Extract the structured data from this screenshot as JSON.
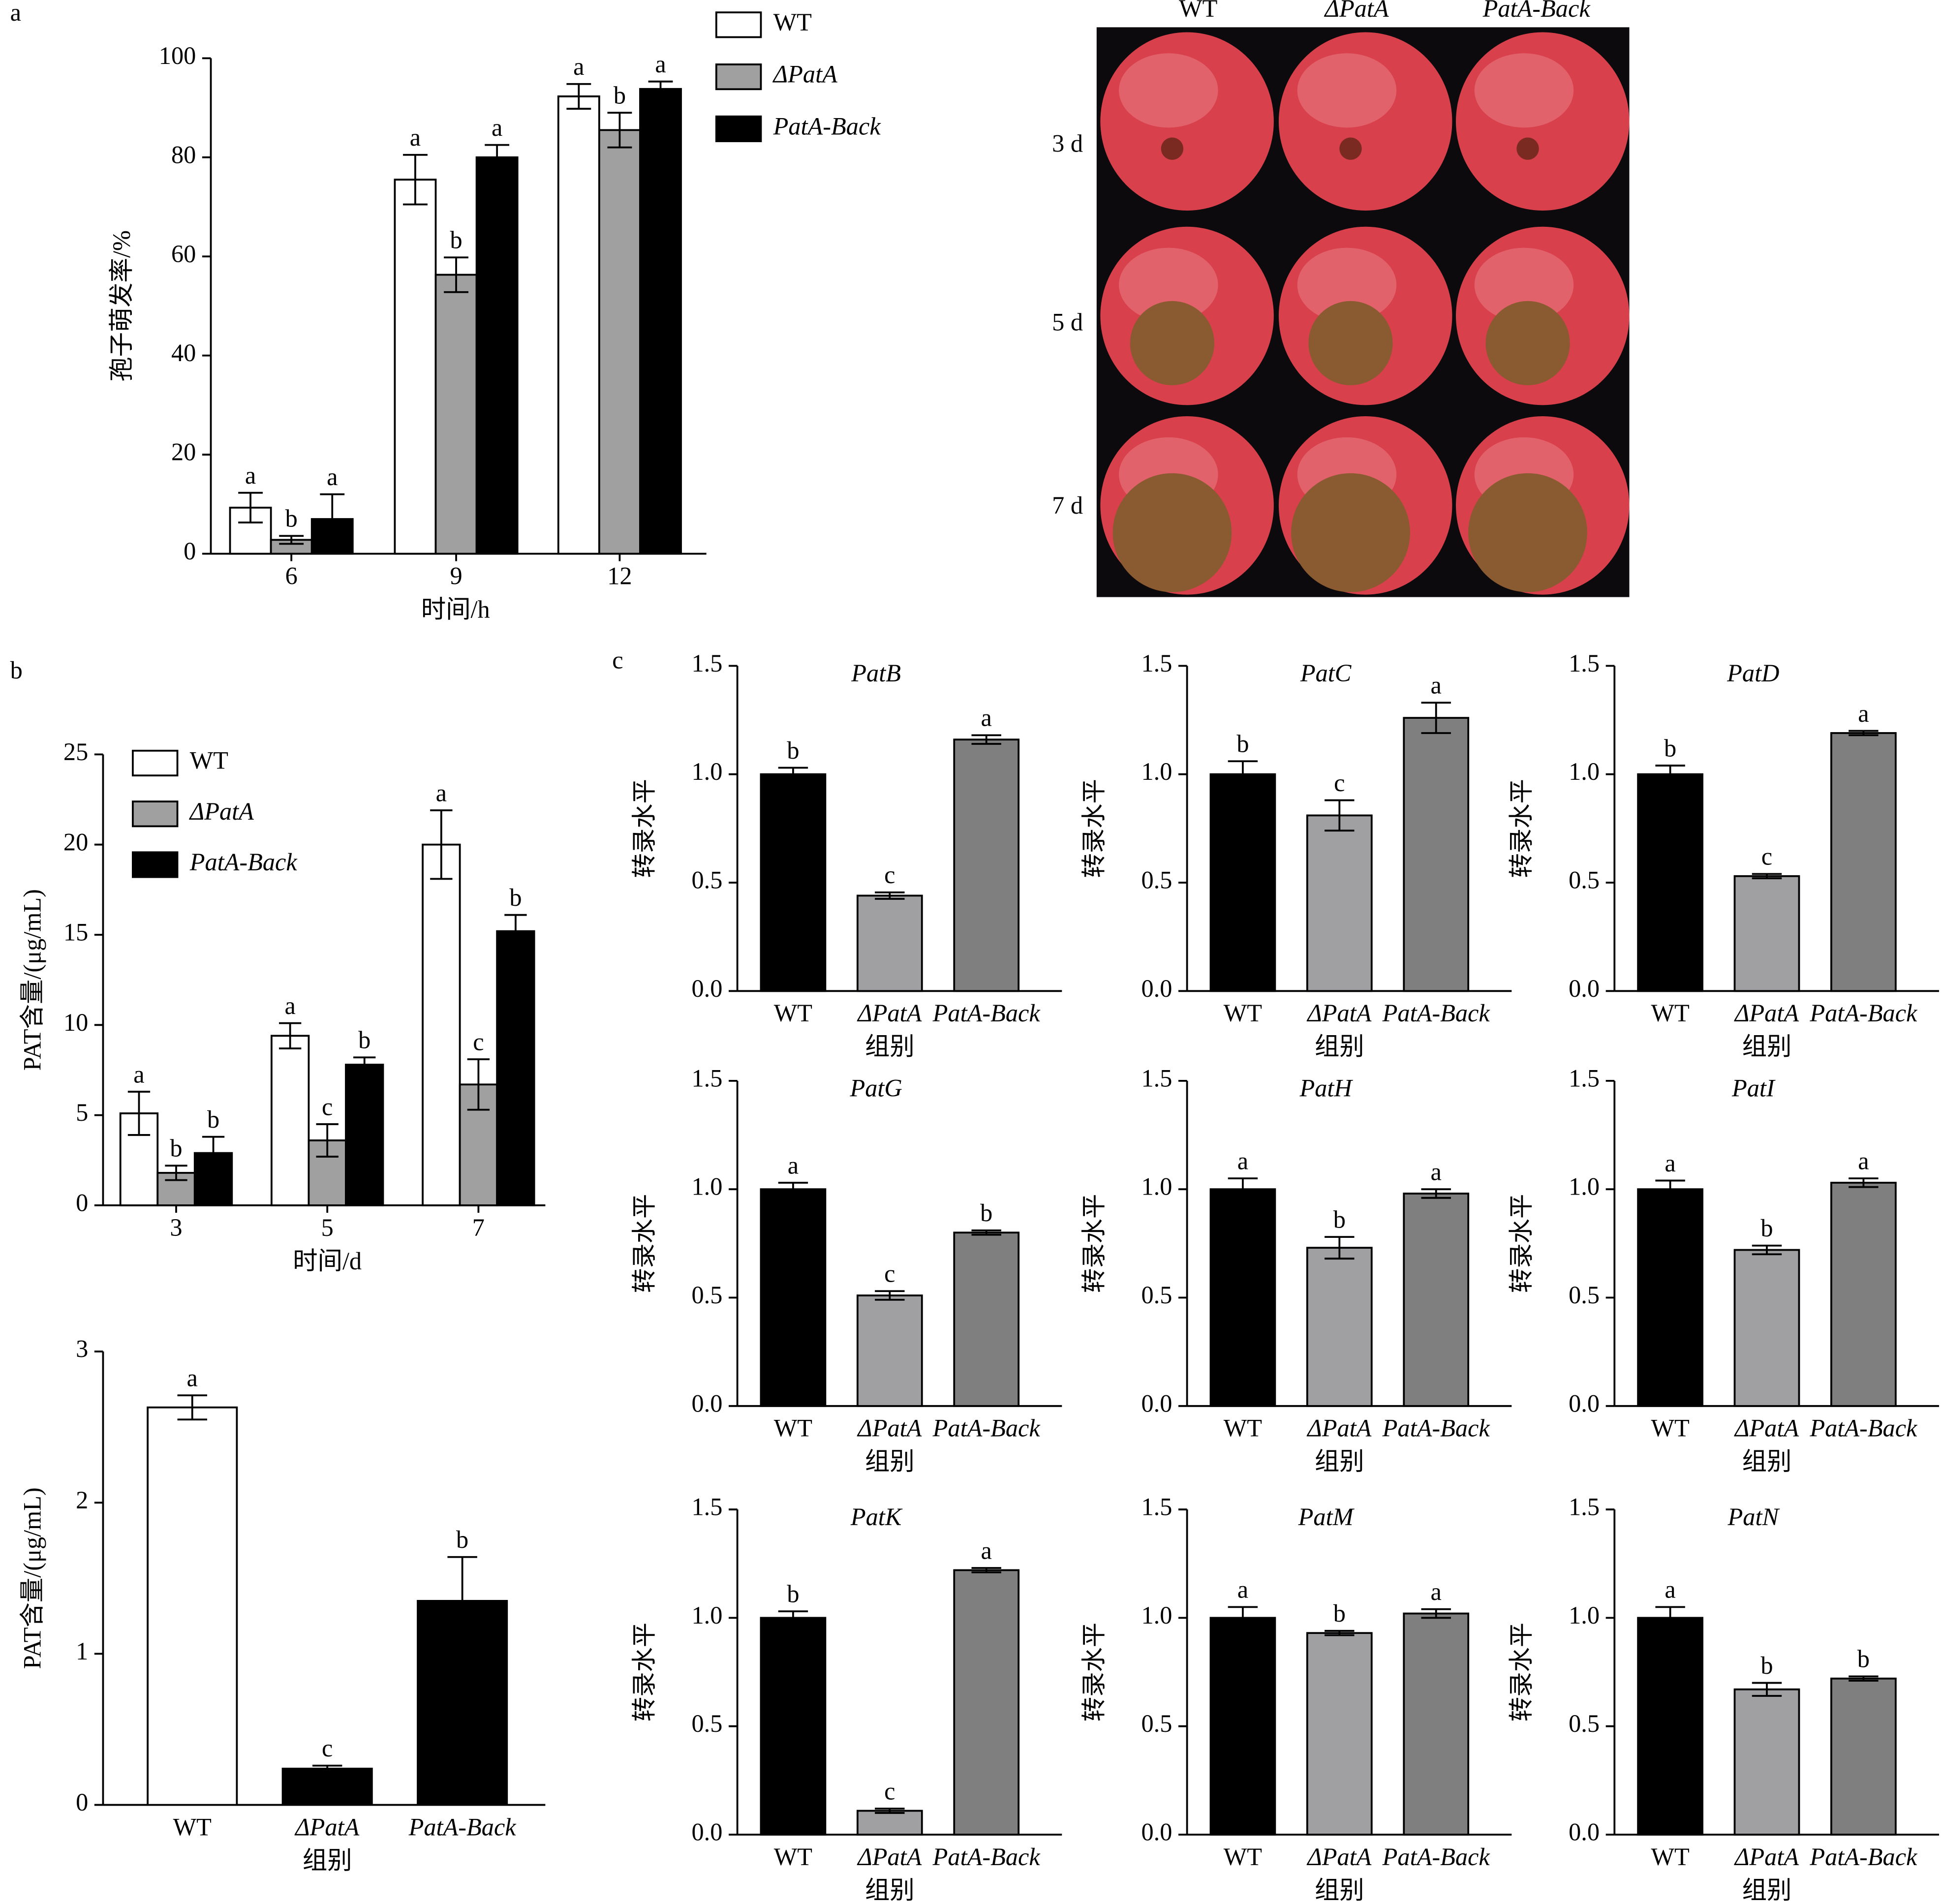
{
  "panel_labels": [
    "a",
    "b",
    "c"
  ],
  "photo": {
    "columns": [
      "WT",
      "ΔPatA",
      "PatA-Back"
    ],
    "rows": [
      "3 d",
      "5 d",
      "7 d"
    ]
  },
  "chart_data": [
    {
      "type": "grouped_bar",
      "ylabel": "孢子萌发率/%",
      "xlabel": "时间/h",
      "categories": [
        "6",
        "9",
        "12"
      ],
      "ylim": [
        0,
        100
      ],
      "yticks": [
        0,
        20,
        40,
        60,
        80,
        100
      ],
      "series": [
        {
          "name": "WT",
          "color": "#ffffff",
          "values": [
            9.3,
            75.5,
            92.3
          ],
          "errors": [
            3,
            5,
            2.5
          ],
          "letters": [
            "a",
            "a",
            "a"
          ]
        },
        {
          "name": "ΔPatA",
          "color": "#a0a0a0",
          "values": [
            2.8,
            56.3,
            85.5
          ],
          "errors": [
            0.8,
            3.5,
            3.5
          ],
          "letters": [
            "b",
            "b",
            "b"
          ]
        },
        {
          "name": "PatA-Back",
          "color": "#000000",
          "values": [
            7.0,
            80.0,
            93.8
          ],
          "errors": [
            5,
            2.5,
            1.5
          ],
          "letters": [
            "a",
            "a",
            "a"
          ]
        }
      ]
    },
    {
      "type": "grouped_bar",
      "ylabel": "PAT含量/(μg/mL)",
      "xlabel": "时间/d",
      "categories": [
        "3",
        "5",
        "7"
      ],
      "ylim": [
        0,
        25
      ],
      "yticks": [
        0,
        5,
        10,
        15,
        20,
        25
      ],
      "series": [
        {
          "name": "WT",
          "color": "#ffffff",
          "values": [
            5.1,
            9.4,
            20.0
          ],
          "errors": [
            1.2,
            0.7,
            1.9
          ],
          "letters": [
            "a",
            "a",
            "a"
          ]
        },
        {
          "name": "ΔPatA",
          "color": "#a0a0a0",
          "values": [
            1.8,
            3.6,
            6.7
          ],
          "errors": [
            0.4,
            0.9,
            1.4
          ],
          "letters": [
            "b",
            "c",
            "c"
          ]
        },
        {
          "name": "PatA-Back",
          "color": "#000000",
          "values": [
            2.9,
            7.8,
            15.2
          ],
          "errors": [
            0.9,
            0.4,
            0.9
          ],
          "letters": [
            "b",
            "b",
            "b"
          ]
        }
      ]
    },
    {
      "type": "bar",
      "ylabel": "PAT含量/(μg/mL)",
      "xlabel": "组别",
      "categories": [
        "WT",
        "ΔPatA",
        "PatA-Back"
      ],
      "ylim": [
        0,
        3
      ],
      "yticks": [
        0,
        1,
        2,
        3
      ],
      "values": [
        2.63,
        0.24,
        1.35
      ],
      "errors": [
        0.08,
        0.02,
        0.29
      ],
      "letters": [
        "a",
        "c",
        "b"
      ],
      "colors": [
        "#ffffff",
        "#000000",
        "#000000"
      ]
    },
    {
      "type": "bar",
      "title": "PatB",
      "ylabel": "转录水平",
      "xlabel": "组别",
      "categories": [
        "WT",
        "ΔPatA",
        "PatA-Back"
      ],
      "ylim": [
        0,
        1.5
      ],
      "yticks": [
        {
          "value": 0,
          "label": "0.0"
        },
        {
          "value": 0.5,
          "label": "0.5"
        },
        {
          "value": 1,
          "label": "1.0"
        },
        {
          "value": 1.5,
          "label": "1.5"
        }
      ],
      "values": [
        1.0,
        0.44,
        1.16
      ],
      "errors": [
        0.03,
        0.015,
        0.02
      ],
      "letters": [
        "b",
        "c",
        "a"
      ],
      "colors": [
        "#000000",
        "#a0a0a2",
        "#7f7f7f"
      ]
    },
    {
      "type": "bar",
      "title": "PatC",
      "ylabel": "转录水平",
      "xlabel": "组别",
      "categories": [
        "WT",
        "ΔPatA",
        "PatA-Back"
      ],
      "ylim": [
        0,
        1.5
      ],
      "yticks": [
        {
          "value": 0,
          "label": "0.0"
        },
        {
          "value": 0.5,
          "label": "0.5"
        },
        {
          "value": 1,
          "label": "1.0"
        },
        {
          "value": 1.5,
          "label": "1.5"
        }
      ],
      "values": [
        1.0,
        0.81,
        1.26
      ],
      "errors": [
        0.06,
        0.07,
        0.07
      ],
      "letters": [
        "b",
        "c",
        "a"
      ],
      "colors": [
        "#000000",
        "#a0a0a2",
        "#7f7f7f"
      ]
    },
    {
      "type": "bar",
      "title": "PatD",
      "ylabel": "转录水平",
      "xlabel": "组别",
      "categories": [
        "WT",
        "ΔPatA",
        "PatA-Back"
      ],
      "ylim": [
        0,
        1.5
      ],
      "yticks": [
        {
          "value": 0,
          "label": "0.0"
        },
        {
          "value": 0.5,
          "label": "0.5"
        },
        {
          "value": 1,
          "label": "1.0"
        },
        {
          "value": 1.5,
          "label": "1.5"
        }
      ],
      "values": [
        1.0,
        0.53,
        1.19
      ],
      "errors": [
        0.04,
        0.01,
        0.01
      ],
      "letters": [
        "b",
        "c",
        "a"
      ],
      "colors": [
        "#000000",
        "#a0a0a2",
        "#7f7f7f"
      ]
    },
    {
      "type": "bar",
      "title": "PatG",
      "ylabel": "转录水平",
      "xlabel": "组别",
      "categories": [
        "WT",
        "ΔPatA",
        "PatA-Back"
      ],
      "ylim": [
        0,
        1.5
      ],
      "yticks": [
        {
          "value": 0,
          "label": "0.0"
        },
        {
          "value": 0.5,
          "label": "0.5"
        },
        {
          "value": 1,
          "label": "1.0"
        },
        {
          "value": 1.5,
          "label": "1.5"
        }
      ],
      "values": [
        1.0,
        0.51,
        0.8
      ],
      "errors": [
        0.03,
        0.02,
        0.01
      ],
      "letters": [
        "a",
        "c",
        "b"
      ],
      "colors": [
        "#000000",
        "#a0a0a2",
        "#7f7f7f"
      ]
    },
    {
      "type": "bar",
      "title": "PatH",
      "ylabel": "转录水平",
      "xlabel": "组别",
      "categories": [
        "WT",
        "ΔPatA",
        "PatA-Back"
      ],
      "ylim": [
        0,
        1.5
      ],
      "yticks": [
        {
          "value": 0,
          "label": "0.0"
        },
        {
          "value": 0.5,
          "label": "0.5"
        },
        {
          "value": 1,
          "label": "1.0"
        },
        {
          "value": 1.5,
          "label": "1.5"
        }
      ],
      "values": [
        1.0,
        0.73,
        0.98
      ],
      "errors": [
        0.05,
        0.05,
        0.02
      ],
      "letters": [
        "a",
        "b",
        "a"
      ],
      "colors": [
        "#000000",
        "#a0a0a2",
        "#7f7f7f"
      ]
    },
    {
      "type": "bar",
      "title": "PatI",
      "ylabel": "转录水平",
      "xlabel": "组别",
      "categories": [
        "WT",
        "ΔPatA",
        "PatA-Back"
      ],
      "ylim": [
        0,
        1.5
      ],
      "yticks": [
        {
          "value": 0,
          "label": "0.0"
        },
        {
          "value": 0.5,
          "label": "0.5"
        },
        {
          "value": 1,
          "label": "1.0"
        },
        {
          "value": 1.5,
          "label": "1.5"
        }
      ],
      "values": [
        1.0,
        0.72,
        1.03
      ],
      "errors": [
        0.04,
        0.02,
        0.02
      ],
      "letters": [
        "a",
        "b",
        "a"
      ],
      "colors": [
        "#000000",
        "#a0a0a2",
        "#7f7f7f"
      ]
    },
    {
      "type": "bar",
      "title": "PatK",
      "ylabel": "转录水平",
      "xlabel": "组别",
      "categories": [
        "WT",
        "ΔPatA",
        "PatA-Back"
      ],
      "ylim": [
        0,
        1.5
      ],
      "yticks": [
        {
          "value": 0,
          "label": "0.0"
        },
        {
          "value": 0.5,
          "label": "0.5"
        },
        {
          "value": 1,
          "label": "1.0"
        },
        {
          "value": 1.5,
          "label": "1.5"
        }
      ],
      "values": [
        1.0,
        0.11,
        1.22
      ],
      "errors": [
        0.03,
        0.01,
        0.01
      ],
      "letters": [
        "b",
        "c",
        "a"
      ],
      "colors": [
        "#000000",
        "#a0a0a2",
        "#7f7f7f"
      ]
    },
    {
      "type": "bar",
      "title": "PatM",
      "ylabel": "转录水平",
      "xlabel": "组别",
      "categories": [
        "WT",
        "ΔPatA",
        "PatA-Back"
      ],
      "ylim": [
        0,
        1.5
      ],
      "yticks": [
        {
          "value": 0,
          "label": "0.0"
        },
        {
          "value": 0.5,
          "label": "0.5"
        },
        {
          "value": 1,
          "label": "1.0"
        },
        {
          "value": 1.5,
          "label": "1.5"
        }
      ],
      "values": [
        1.0,
        0.93,
        1.02
      ],
      "errors": [
        0.05,
        0.01,
        0.02
      ],
      "letters": [
        "a",
        "b",
        "a"
      ],
      "colors": [
        "#000000",
        "#a0a0a2",
        "#7f7f7f"
      ]
    },
    {
      "type": "bar",
      "title": "PatN",
      "ylabel": "转录水平",
      "xlabel": "组别",
      "categories": [
        "WT",
        "ΔPatA",
        "PatA-Back"
      ],
      "ylim": [
        0,
        1.5
      ],
      "yticks": [
        {
          "value": 0,
          "label": "0.0"
        },
        {
          "value": 0.5,
          "label": "0.5"
        },
        {
          "value": 1,
          "label": "1.0"
        },
        {
          "value": 1.5,
          "label": "1.5"
        }
      ],
      "values": [
        1.0,
        0.67,
        0.72
      ],
      "errors": [
        0.05,
        0.03,
        0.01
      ],
      "letters": [
        "a",
        "b",
        "b"
      ],
      "colors": [
        "#000000",
        "#a0a0a2",
        "#7f7f7f"
      ]
    }
  ]
}
